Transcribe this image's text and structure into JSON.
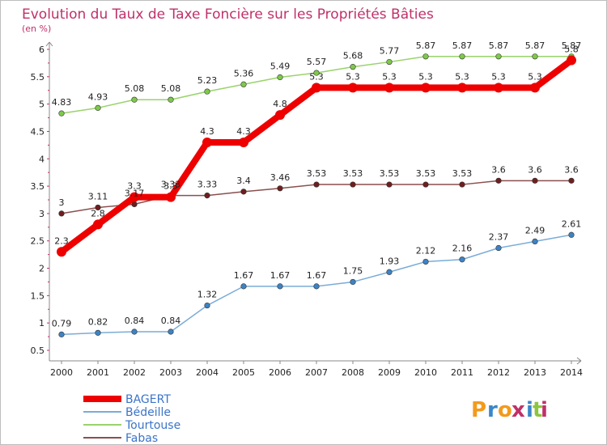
{
  "chart_data": {
    "type": "line",
    "title": "Evolution du Taux de Taxe Foncière sur les Propriétés Bâties",
    "ylabel": "(en %)",
    "xlabel": "",
    "ylim": [
      0.5,
      6
    ],
    "yticks": [
      "0.5",
      "1",
      "1.5",
      "2",
      "2.5",
      "3",
      "3.5",
      "4",
      "4.5",
      "5",
      "5.5",
      "6"
    ],
    "categories": [
      "2000",
      "2001",
      "2002",
      "2003",
      "2004",
      "2005",
      "2006",
      "2007",
      "2008",
      "2009",
      "2010",
      "2011",
      "2012",
      "2013",
      "2014"
    ],
    "series": [
      {
        "name": "Tourtouse",
        "color": "#99d36b",
        "dot": "#7ec94a",
        "values": [
          4.83,
          4.93,
          5.08,
          5.08,
          5.23,
          5.36,
          5.49,
          5.57,
          5.68,
          5.77,
          5.87,
          5.87,
          5.87,
          5.87,
          5.87
        ],
        "labels": [
          "4.83",
          "4.93",
          "5.08",
          "5.08",
          "5.23",
          "5.36",
          "5.49",
          "5.57",
          "5.68",
          "5.77",
          "5.87",
          "5.87",
          "5.87",
          "5.87",
          "5.87"
        ]
      },
      {
        "name": "Fabas",
        "color": "#8a4f4f",
        "dot": "#6e1e1e",
        "values": [
          3,
          3.11,
          3.17,
          3.33,
          3.33,
          3.4,
          3.46,
          3.53,
          3.53,
          3.53,
          3.53,
          3.53,
          3.6,
          3.6,
          3.6
        ],
        "labels": [
          "3",
          "3.11",
          "3.17",
          "3.33",
          "3.33",
          "3.4",
          "3.46",
          "3.53",
          "3.53",
          "3.53",
          "3.53",
          "3.53",
          "3.6",
          "3.6",
          "3.6"
        ]
      },
      {
        "name": "Bédeille",
        "color": "#7aacd8",
        "dot": "#3d83c4",
        "values": [
          0.79,
          0.82,
          0.84,
          0.84,
          1.32,
          1.67,
          1.67,
          1.67,
          1.75,
          1.93,
          2.12,
          2.16,
          2.37,
          2.49,
          2.61
        ],
        "labels": [
          "0.79",
          "0.82",
          "0.84",
          "0.84",
          "1.32",
          "1.67",
          "1.67",
          "1.67",
          "1.75",
          "1.93",
          "2.12",
          "2.16",
          "2.37",
          "2.49",
          "2.61"
        ]
      },
      {
        "name": "BAGERT",
        "color": "#ee0000",
        "dot": "#ee0000",
        "values": [
          2.3,
          2.8,
          3.3,
          3.3,
          4.3,
          4.3,
          4.8,
          5.3,
          5.3,
          5.3,
          5.3,
          5.3,
          5.3,
          5.3,
          5.8
        ],
        "labels": [
          "2.3",
          "2.8",
          "3.3",
          "3.3",
          "4.3",
          "4.3",
          "4.8",
          "5.3",
          "5.3",
          "5.3",
          "5.3",
          "5.3",
          "5.3",
          "5.3",
          "5.8"
        ]
      }
    ],
    "legend": [
      "BAGERT",
      "Bédeille",
      "Tourtouse",
      "Fabas"
    ],
    "legend_position": "bottom-left"
  },
  "brand": {
    "name": "Proxiti",
    "letters": [
      "P",
      "r",
      "o",
      "x",
      "i",
      "t",
      "i"
    ],
    "colors": [
      "#f39a1c",
      "#3a86c8",
      "#f39a1c",
      "#c0306a",
      "#3a86c8",
      "#8cc63f",
      "#c0306a"
    ]
  }
}
